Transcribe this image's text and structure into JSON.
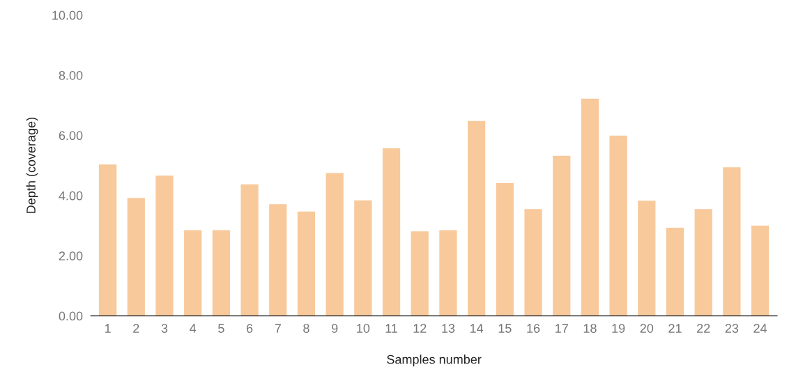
{
  "chart_data": {
    "type": "bar",
    "xlabel": "Samples number",
    "ylabel": "Depth (coverage)",
    "categories": [
      "1",
      "2",
      "3",
      "4",
      "5",
      "6",
      "7",
      "8",
      "9",
      "10",
      "11",
      "12",
      "13",
      "14",
      "15",
      "16",
      "17",
      "18",
      "19",
      "20",
      "21",
      "22",
      "23",
      "24"
    ],
    "values": [
      5.03,
      3.92,
      4.66,
      2.85,
      2.85,
      4.37,
      3.71,
      3.47,
      4.75,
      3.84,
      5.57,
      2.81,
      2.85,
      6.48,
      4.41,
      3.55,
      5.32,
      7.22,
      5.99,
      3.83,
      2.93,
      3.55,
      4.94,
      3.0
    ],
    "color": "#f8c99b",
    "ylim": [
      0,
      10
    ],
    "yticks": [
      {
        "value": 0,
        "label": "0.00"
      },
      {
        "value": 2,
        "label": "2.00"
      },
      {
        "value": 4,
        "label": "4.00"
      },
      {
        "value": 6,
        "label": "6.00"
      },
      {
        "value": 8,
        "label": "8.00"
      },
      {
        "value": 10,
        "label": "10.00"
      }
    ],
    "grid": false,
    "legend": false
  }
}
